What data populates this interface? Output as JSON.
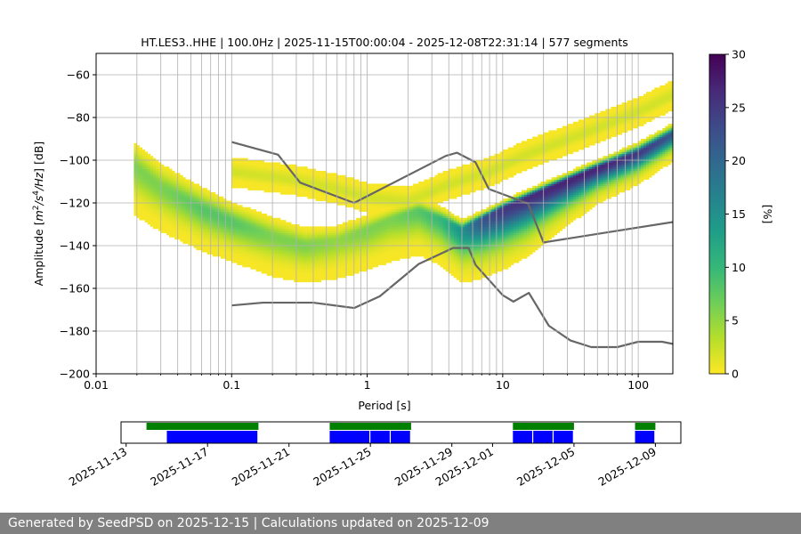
{
  "chart_data": [
    {
      "type": "heatmap",
      "title": "HT.LES3..HHE | 100.0Hz | 2025-11-15T00:00:04 - 2025-12-08T22:31:14 | 577 segments",
      "xlabel": "Period [s]",
      "ylabel_parts": [
        "Amplitude [",
        "m",
        "2",
        "/",
        "s",
        "4",
        "/",
        "Hz",
        "] [dB]"
      ],
      "x_scale": "log",
      "xlim": [
        0.01,
        180
      ],
      "ylim": [
        -200,
        -50
      ],
      "x_ticks": [
        0.01,
        0.1,
        1,
        10,
        100
      ],
      "x_tick_labels": [
        "0.01",
        "0.1",
        "1",
        "10",
        "100"
      ],
      "y_ticks": [
        -200,
        -180,
        -160,
        -140,
        -120,
        -100,
        -80,
        -60
      ],
      "y_tick_labels": [
        "−200",
        "−180",
        "−160",
        "−140",
        "−120",
        "−100",
        "−80",
        "−60"
      ],
      "grid": true,
      "colorbar": {
        "label": "[%]",
        "range": [
          0,
          30
        ],
        "ticks": [
          0,
          5,
          10,
          15,
          20,
          25,
          30
        ],
        "tick_labels": [
          "0",
          "5",
          "10",
          "15",
          "20",
          "25",
          "30"
        ],
        "colormap": [
          "#fde725",
          "#b5de2b",
          "#6ece58",
          "#35b779",
          "#1f9e89",
          "#26828e",
          "#31688e",
          "#3e4989",
          "#482878",
          "#440154"
        ]
      },
      "density_ridges": [
        {
          "name": "main",
          "points": [
            [
              0.019,
              -103
            ],
            [
              0.03,
              -113
            ],
            [
              0.06,
              -123
            ],
            [
              0.1,
              -129
            ],
            [
              0.2,
              -136
            ],
            [
              0.35,
              -140
            ],
            [
              0.6,
              -138
            ],
            [
              1,
              -133
            ],
            [
              1.5,
              -128
            ],
            [
              2.4,
              -124
            ],
            [
              3.5,
              -128
            ],
            [
              5,
              -133
            ],
            [
              7,
              -128
            ],
            [
              10,
              -123
            ],
            [
              15,
              -118
            ],
            [
              25,
              -112
            ],
            [
              50,
              -104
            ],
            [
              100,
              -97
            ],
            [
              180,
              -88
            ]
          ],
          "spread_low": [
            10,
            10,
            9,
            8,
            8,
            7,
            6,
            6,
            5,
            5,
            5,
            4,
            3,
            3,
            3,
            3,
            3,
            4,
            4
          ],
          "spread_high": [
            22,
            20,
            19,
            18,
            18,
            17,
            17,
            18,
            19,
            20,
            21,
            24,
            27,
            28,
            27,
            22,
            16,
            14,
            12
          ],
          "peak_percent": [
            6,
            6,
            8,
            8,
            6,
            6,
            5,
            6,
            6,
            8,
            10,
            15,
            22,
            25,
            26,
            27,
            27,
            25,
            22
          ]
        },
        {
          "name": "secondary",
          "points": [
            [
              0.1,
              -106
            ],
            [
              0.3,
              -110
            ],
            [
              0.6,
              -114
            ],
            [
              1,
              -118
            ],
            [
              2,
              -120
            ],
            [
              4,
              -112
            ],
            [
              8,
              -106
            ],
            [
              15,
              -98
            ],
            [
              40,
              -88
            ],
            [
              100,
              -78
            ],
            [
              180,
              -70
            ]
          ],
          "spread_low": [
            6,
            6,
            6,
            6,
            6,
            6,
            6,
            6,
            6,
            6,
            6
          ],
          "spread_high": [
            6,
            6,
            6,
            6,
            6,
            6,
            6,
            6,
            6,
            6,
            6
          ],
          "peak_percent": [
            2,
            2,
            2,
            2,
            2,
            2,
            2,
            2,
            2,
            2,
            2
          ]
        }
      ],
      "model_curves": [
        {
          "color": "#666666",
          "points": [
            [
              0.1,
              -91.5
            ],
            [
              0.22,
              -97.4
            ],
            [
              0.32,
              -110.5
            ],
            [
              0.8,
              -120
            ],
            [
              3.8,
              -98
            ],
            [
              4.6,
              -96.5
            ],
            [
              6.3,
              -101
            ],
            [
              7.9,
              -113.5
            ],
            [
              15.4,
              -120.3
            ],
            [
              20,
              -138.5
            ],
            [
              354,
              -126
            ]
          ]
        },
        {
          "color": "#666666",
          "points": [
            [
              0.1,
              -168
            ],
            [
              0.17,
              -166.7
            ],
            [
              0.4,
              -166.7
            ],
            [
              0.8,
              -169.2
            ],
            [
              1.24,
              -163.7
            ],
            [
              2.4,
              -148.6
            ],
            [
              4.3,
              -141.1
            ],
            [
              5.6,
              -141.1
            ],
            [
              6.3,
              -149
            ],
            [
              10,
              -163.2
            ],
            [
              12,
              -166.2
            ],
            [
              15.6,
              -162.1
            ],
            [
              21.9,
              -177.5
            ],
            [
              31.6,
              -184.4
            ],
            [
              45,
              -187.5
            ],
            [
              70,
              -187.5
            ],
            [
              100,
              -185
            ],
            [
              150,
              -185
            ],
            [
              180,
              -186
            ]
          ]
        }
      ]
    },
    {
      "type": "timeline",
      "x_tick_labels": [
        "2025-11-13",
        "2025-11-17",
        "2025-11-21",
        "2025-11-25",
        "2025-11-29",
        "2025-12-01",
        "2025-12-05",
        "2025-12-09"
      ],
      "x_ticks": [
        "2025-11-13",
        "2025-11-17",
        "2025-11-21",
        "2025-11-25",
        "2025-11-29",
        "2025-12-01",
        "2025-12-05",
        "2025-12-09"
      ],
      "xlim": [
        "2025-11-12T18:00",
        "2025-12-10T06:00"
      ],
      "series": [
        {
          "color": "#008000",
          "intervals": [
            [
              "2025-11-14T00:00",
              "2025-11-19T12:00"
            ],
            [
              "2025-11-23T00:00",
              "2025-11-27T00:00"
            ],
            [
              "2025-12-02T00:00",
              "2025-12-05T00:00"
            ],
            [
              "2025-12-08T00:00",
              "2025-12-09T00:00"
            ]
          ]
        },
        {
          "color": "#0000ff",
          "intervals": [
            [
              "2025-11-15T00:00",
              "2025-11-19T12:00"
            ],
            [
              "2025-11-23T00:00",
              "2025-11-25T00:00"
            ],
            [
              "2025-11-25T00:00",
              "2025-11-26T00:00"
            ],
            [
              "2025-11-26T00:00",
              "2025-11-27T00:00"
            ],
            [
              "2025-12-02T00:00",
              "2025-12-03T00:00"
            ],
            [
              "2025-12-03T00:00",
              "2025-12-04T00:00"
            ],
            [
              "2025-12-04T00:00",
              "2025-12-05T00:00"
            ],
            [
              "2025-12-08T00:00",
              "2025-12-09T00:00"
            ]
          ]
        }
      ]
    }
  ],
  "footer": {
    "text": "Generated by SeedPSD on 2025-12-15 | Calculations updated on 2025-12-09"
  }
}
